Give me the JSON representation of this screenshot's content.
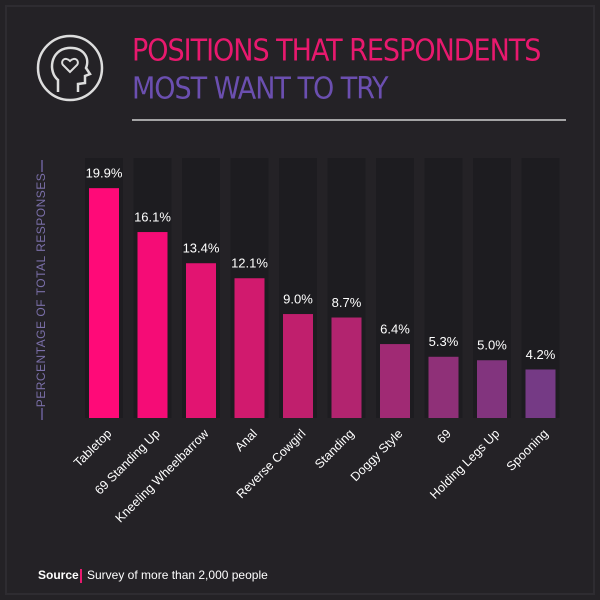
{
  "chart_data": {
    "type": "bar",
    "title": [
      "POSITIONS THAT RESPONDENTS",
      "MOST WANT TO TRY"
    ],
    "y_label": "PERCENTAGE OF TOTAL RESPONSES",
    "categories": [
      "Tabletop",
      "69 Standing Up",
      "Kneeling Wheelbarrow",
      "Anal",
      "Reverse Cowgirl",
      "Standing",
      "Doggy Style",
      "69",
      "Holding Legs Up",
      "Spooning"
    ],
    "values": [
      19.9,
      16.1,
      13.4,
      12.1,
      9.0,
      8.7,
      6.4,
      5.3,
      5.0,
      4.2
    ],
    "value_labels": [
      "19.9%",
      "16.1%",
      "13.4%",
      "12.1%",
      "9.0%",
      "8.7%",
      "6.4%",
      "5.3%",
      "5.0%",
      "4.2%"
    ],
    "colors": [
      "#ff0a78",
      "#f50c76",
      "#e21471",
      "#d11a6e",
      "#c01f6d",
      "#b2246f",
      "#a02a74",
      "#8f3078",
      "#82347e",
      "#753a85"
    ],
    "ylim": [
      0,
      20
    ],
    "source_label": "Source",
    "source": "Survey of more than 2,000 people"
  }
}
